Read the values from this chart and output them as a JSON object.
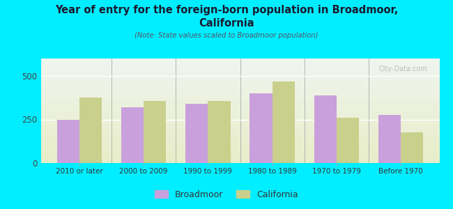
{
  "categories": [
    "2010 or later",
    "2000 to 2009",
    "1990 to 1999",
    "1980 to 1989",
    "1970 to 1979",
    "Before 1970"
  ],
  "broadmoor_values": [
    250,
    320,
    340,
    400,
    390,
    275
  ],
  "california_values": [
    375,
    355,
    355,
    470,
    260,
    175
  ],
  "broadmoor_color": "#c9a0dc",
  "california_color": "#c8d08c",
  "title_line1": "Year of entry for the foreign-born population in Broadmoor,",
  "title_line2": "California",
  "subtitle": "(Note: State values scaled to Broadmoor population)",
  "ylim": [
    0,
    600
  ],
  "yticks": [
    0,
    250,
    500
  ],
  "background_color": "#00eeff",
  "plot_bg_top": "#f0f5f0",
  "plot_bg_bottom": "#e8edc8",
  "watermark": "City-Data.com",
  "legend_labels": [
    "Broadmoor",
    "California"
  ],
  "bar_width": 0.35,
  "title_color": "#1a1a2e",
  "subtitle_color": "#555566"
}
